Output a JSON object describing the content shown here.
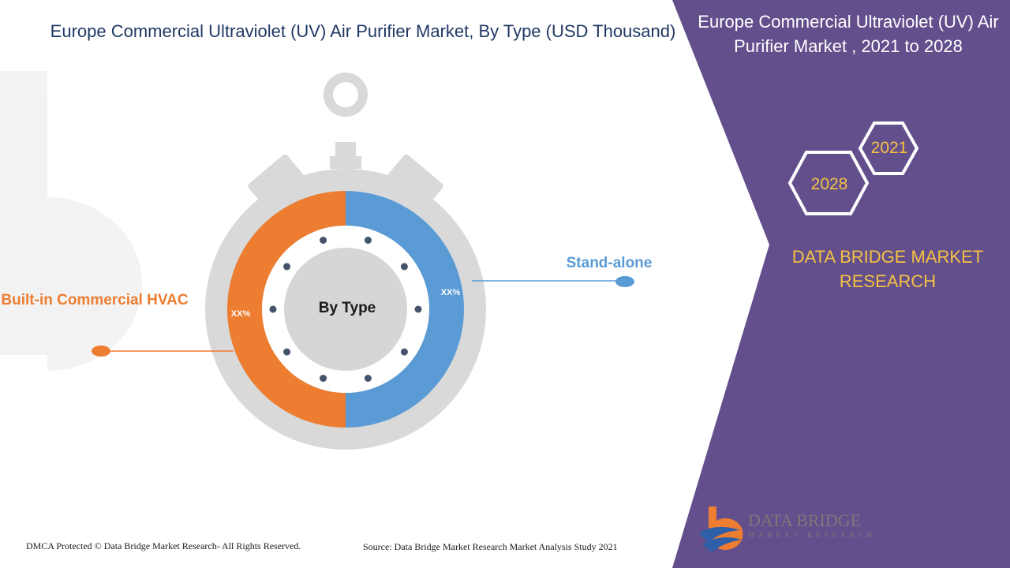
{
  "title": "Europe Commercial Ultraviolet (UV) Air Purifier Market, By Type (USD Thousand)",
  "panel": {
    "title": "Europe Commercial Ultraviolet (UV) Air Purifier Market , 2021 to 2028",
    "year_start": "2021",
    "year_end": "2028",
    "brand": "DATA BRIDGE MARKET RESEARCH"
  },
  "colors": {
    "panel_purple": "#634f8c",
    "orange": "#ed7d31",
    "blue": "#5b9bd5",
    "ring_gray": "#d9d9d9",
    "center_gray": "#d6d6d6",
    "title_navy": "#1f3864",
    "brand_gold": "#f5c242"
  },
  "chart_data": {
    "type": "pie",
    "center_label": "By Type",
    "categories": [
      "Stand-alone",
      "Built-in Commercial HVAC"
    ],
    "values": [
      50,
      50
    ],
    "value_labels": [
      "XX%",
      "XX%"
    ]
  },
  "footer": {
    "copyright": "DMCA Protected © Data Bridge Market Research- All Rights Reserved.",
    "source": "Source: Data Bridge Market Research Market Analysis Study 2021"
  },
  "logo": {
    "line1": "DATA BRIDGE",
    "line2": "MARKET RESEARCH"
  }
}
